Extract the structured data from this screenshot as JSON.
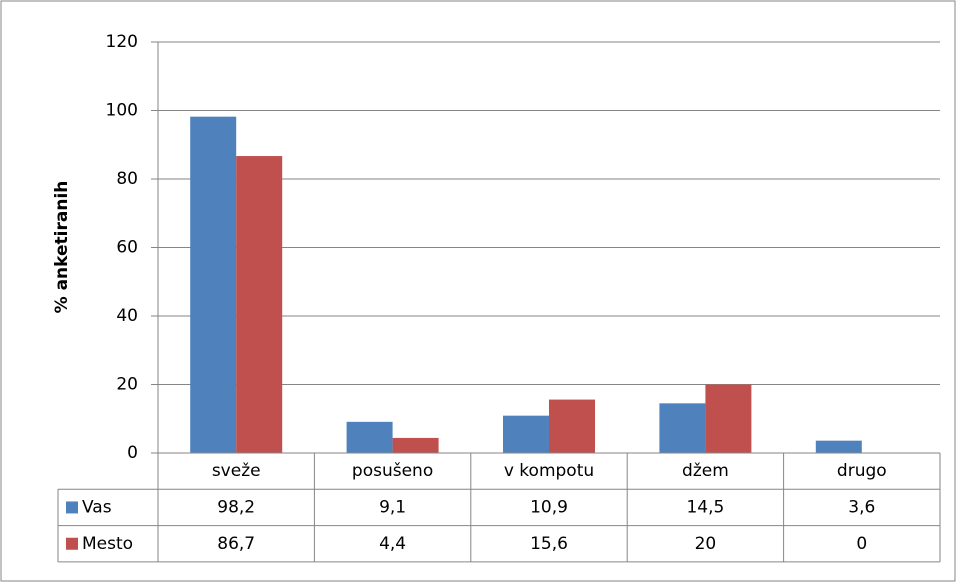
{
  "chart_data": {
    "type": "bar",
    "y_axis_label": "% anketiranih",
    "categories": [
      "sveže",
      "posušeno",
      "v kompotu",
      "džem",
      "drugo"
    ],
    "series": [
      {
        "name": "Vas",
        "color": "#4f81bd",
        "values": [
          98.2,
          9.1,
          10.9,
          14.5,
          3.6
        ],
        "value_labels": [
          "98,2",
          "9,1",
          "10,9",
          "14,5",
          "3,6"
        ]
      },
      {
        "name": "Mesto",
        "color": "#c0504d",
        "values": [
          86.7,
          4.4,
          15.6,
          20,
          0
        ],
        "value_labels": [
          "86,7",
          "4,4",
          "15,6",
          "20",
          "0"
        ]
      }
    ],
    "ylim": [
      0,
      120
    ],
    "yticks": [
      0,
      20,
      40,
      60,
      80,
      100,
      120
    ],
    "grid": true,
    "data_table": true
  }
}
